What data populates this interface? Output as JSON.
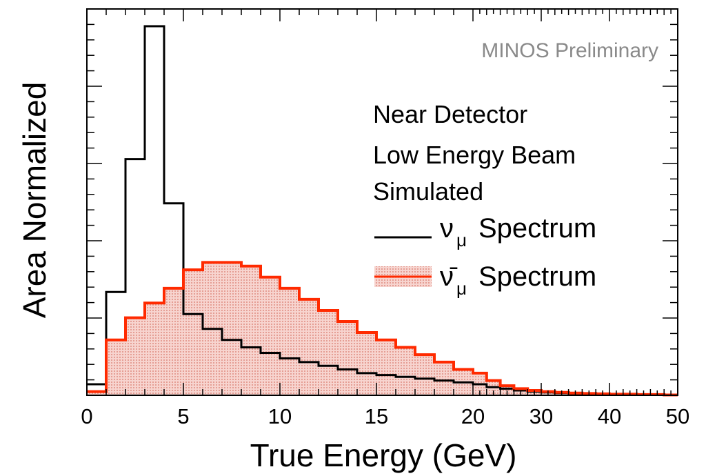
{
  "chart_data": {
    "type": "histogram",
    "title": "",
    "xlabel": "True Energy (GeV)",
    "ylabel": "Area Normalized",
    "x_tick_labels": [
      "0",
      "5",
      "10",
      "15",
      "20",
      "30",
      "40",
      "50"
    ],
    "x_tick_values": [
      0,
      5,
      10,
      15,
      20,
      30,
      40,
      50
    ],
    "x_axis_note": "variable-width binning: 1 GeV bins from 0 to 20 GeV, 2 GeV bins from 20 to 50 GeV",
    "xlim": [
      0,
      50
    ],
    "ylim": [
      0,
      1
    ],
    "y_tick_labels_shown": false,
    "watermark": "MINOS Preliminary",
    "annotations": [
      "Near Detector",
      "Low Energy Beam",
      "Simulated"
    ],
    "legend": {
      "placement": "right",
      "entries": [
        {
          "symbol": "ν",
          "subscript": "μ",
          "text": "Spectrum",
          "style": "line"
        },
        {
          "symbol": "ν̄",
          "subscript": "μ",
          "text": "Spectrum",
          "style": "filled"
        }
      ]
    },
    "bin_edges": [
      0,
      1,
      2,
      3,
      4,
      5,
      6,
      7,
      8,
      9,
      10,
      11,
      12,
      13,
      14,
      15,
      16,
      17,
      18,
      19,
      20,
      22,
      24,
      26,
      28,
      30,
      32,
      34,
      36,
      38,
      40,
      42,
      44,
      46,
      48,
      50
    ],
    "series": [
      {
        "name": "νμ Spectrum",
        "color": "#000000",
        "fill": "none",
        "values": [
          0.03,
          0.28,
          0.64,
          1.0,
          0.52,
          0.22,
          0.18,
          0.15,
          0.13,
          0.115,
          0.1,
          0.09,
          0.08,
          0.07,
          0.06,
          0.055,
          0.05,
          0.045,
          0.04,
          0.035,
          0.03,
          0.022,
          0.018,
          0.013,
          0.01,
          0.008,
          0.006,
          0.005,
          0.004,
          0.003,
          0.003,
          0.002,
          0.002,
          0.001,
          0.001
        ]
      },
      {
        "name": "ν̄μ Spectrum",
        "color": "#ff2a00",
        "fill": "#f4c6c0",
        "values": [
          0.01,
          0.15,
          0.21,
          0.25,
          0.29,
          0.34,
          0.36,
          0.36,
          0.35,
          0.32,
          0.29,
          0.26,
          0.23,
          0.2,
          0.17,
          0.15,
          0.13,
          0.11,
          0.09,
          0.07,
          0.06,
          0.04,
          0.026,
          0.018,
          0.013,
          0.01,
          0.008,
          0.006,
          0.005,
          0.004,
          0.003,
          0.003,
          0.002,
          0.002,
          0.001
        ]
      }
    ]
  }
}
